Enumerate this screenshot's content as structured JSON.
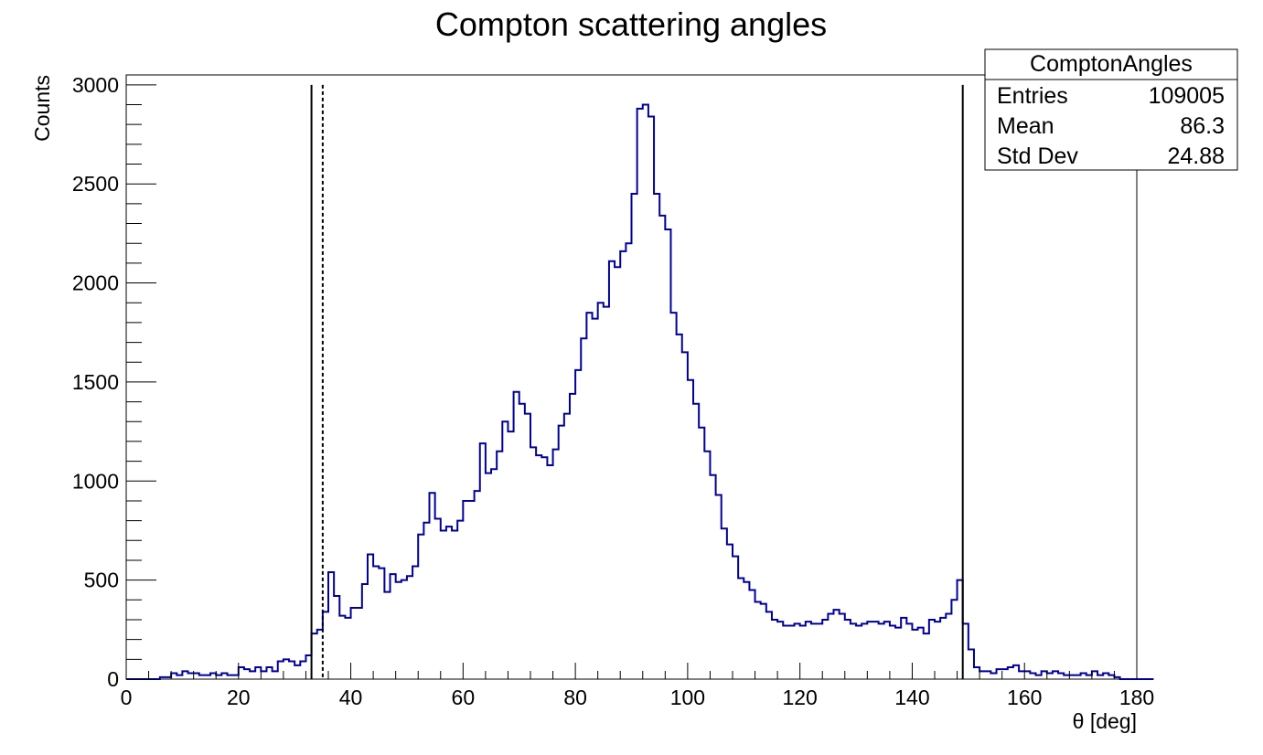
{
  "chart_data": {
    "type": "histogram",
    "title": "Compton scattering angles",
    "xlabel": "θ [deg]",
    "ylabel": "Counts",
    "xlim": [
      0,
      180
    ],
    "ylim": [
      0,
      3050
    ],
    "x_ticks": [
      "0",
      "20",
      "40",
      "60",
      "80",
      "100",
      "120",
      "140",
      "160",
      "180"
    ],
    "y_ticks": [
      "0",
      "500",
      "1000",
      "1500",
      "2000",
      "2500",
      "3000"
    ],
    "bin_width": 1,
    "bin_start": 0,
    "series": [
      {
        "color": "#000099",
        "values": [
          0,
          0,
          0,
          0,
          0,
          0,
          10,
          10,
          30,
          20,
          40,
          30,
          30,
          20,
          20,
          30,
          20,
          30,
          20,
          20,
          60,
          50,
          40,
          60,
          40,
          60,
          40,
          90,
          100,
          90,
          70,
          90,
          120,
          230,
          250,
          340,
          540,
          420,
          320,
          310,
          360,
          360,
          480,
          630,
          570,
          560,
          440,
          530,
          490,
          500,
          520,
          570,
          730,
          790,
          940,
          810,
          750,
          770,
          750,
          800,
          900,
          900,
          950,
          1190,
          1040,
          1060,
          1150,
          1300,
          1250,
          1450,
          1390,
          1340,
          1170,
          1130,
          1120,
          1080,
          1160,
          1280,
          1340,
          1440,
          1560,
          1720,
          1850,
          1820,
          1900,
          1880,
          2110,
          2080,
          2160,
          2200,
          2450,
          2880,
          2900,
          2840,
          2450,
          2340,
          2270,
          1850,
          1740,
          1650,
          1510,
          1390,
          1270,
          1150,
          1030,
          930,
          760,
          680,
          620,
          510,
          490,
          450,
          390,
          380,
          340,
          300,
          290,
          270,
          270,
          280,
          270,
          290,
          280,
          280,
          300,
          330,
          350,
          330,
          300,
          280,
          270,
          280,
          290,
          290,
          280,
          290,
          270,
          260,
          310,
          280,
          250,
          260,
          230,
          300,
          290,
          310,
          330,
          400,
          500,
          280,
          150,
          60,
          40,
          40,
          30,
          50,
          50,
          60,
          70,
          40,
          40,
          30,
          20,
          40,
          30,
          40,
          30,
          20,
          20,
          20,
          30,
          20,
          40,
          20,
          30,
          20,
          10,
          0,
          0,
          0,
          0,
          0,
          0
        ],
        "line_width": 2
      }
    ],
    "vertical_markers": [
      {
        "x": 33,
        "style": "solid"
      },
      {
        "x": 35,
        "style": "dashed"
      },
      {
        "x": 149,
        "style": "solid"
      }
    ],
    "stats_box": {
      "name": "ComptonAngles",
      "rows": [
        {
          "label": "Entries",
          "value": "109005"
        },
        {
          "label": "Mean",
          "value": "86.3"
        },
        {
          "label": "Std Dev",
          "value": "24.88"
        }
      ]
    },
    "grid": false,
    "legend": "top-right"
  }
}
